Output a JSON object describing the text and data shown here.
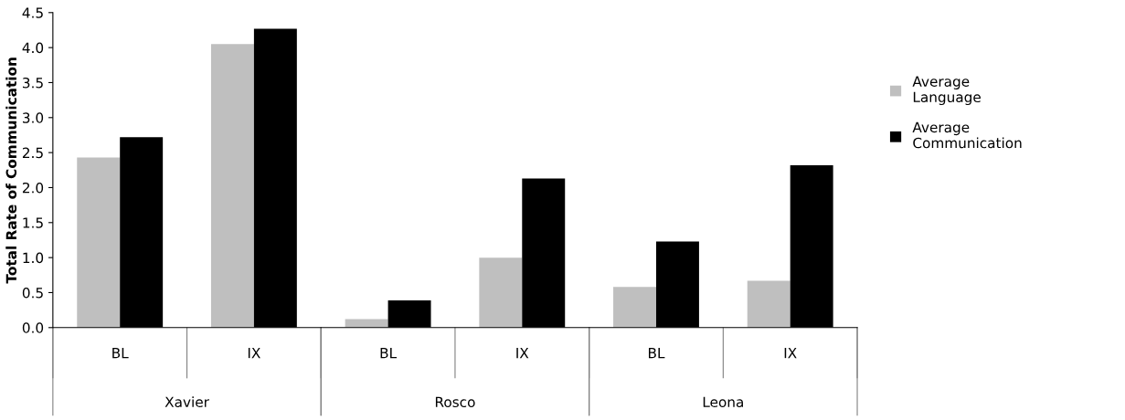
{
  "chart_data": {
    "type": "bar",
    "categories": [
      "BL",
      "IX",
      "BL",
      "IX",
      "BL",
      "IX"
    ],
    "annotations": [
      "Xavier",
      "Rosco",
      "Leona"
    ],
    "ylabel": "Total Rate of Communication",
    "series": [
      {
        "name": "Average Language",
        "color": "#bfbfbf",
        "values": [
          2.43,
          4.05,
          0.12,
          1.0,
          0.58,
          0.67
        ]
      },
      {
        "name": "Average Communication",
        "color": "#000000",
        "values": [
          2.72,
          4.27,
          0.39,
          2.13,
          1.23,
          2.32
        ]
      }
    ],
    "ylim": [
      0,
      4.5
    ],
    "yticks": [
      {
        "value": 0,
        "label": "0.0"
      },
      {
        "value": 0.5,
        "label": "0.5"
      },
      {
        "value": 1,
        "label": "1.0"
      },
      {
        "value": 1.5,
        "label": "1.5"
      },
      {
        "value": 2,
        "label": "2.0"
      },
      {
        "value": 2.5,
        "label": "2.5"
      },
      {
        "value": 3,
        "label": "3.0"
      },
      {
        "value": 3.5,
        "label": "3.5"
      },
      {
        "value": 4,
        "label": "4.0"
      },
      {
        "value": 4.5,
        "label": "4.5"
      }
    ],
    "legend": "right",
    "grid": false
  }
}
